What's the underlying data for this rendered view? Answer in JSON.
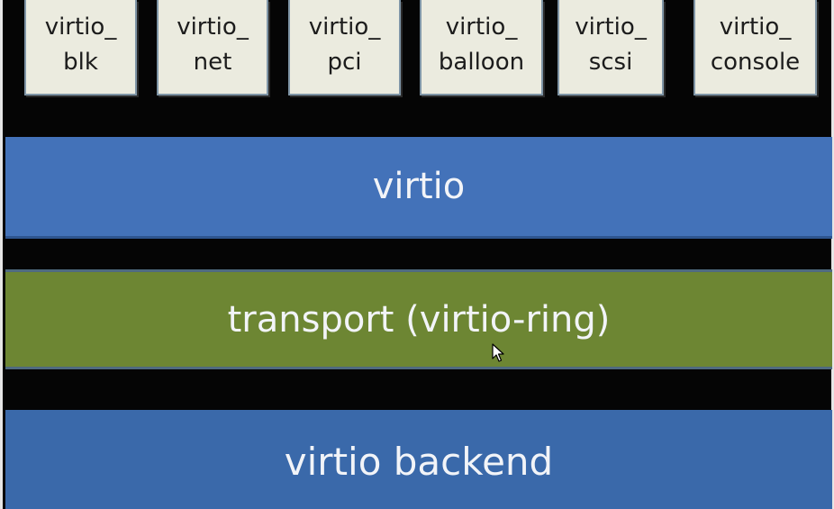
{
  "drivers": [
    {
      "line1": "virtio_",
      "line2": "blk"
    },
    {
      "line1": "virtio_",
      "line2": "net"
    },
    {
      "line1": "virtio_",
      "line2": "pci"
    },
    {
      "line1": "virtio_",
      "line2": "balloon"
    },
    {
      "line1": "virtio_",
      "line2": "scsi"
    },
    {
      "line1": "virtio_",
      "line2": "console"
    }
  ],
  "layers": {
    "virtio": "virtio",
    "transport": "transport (virtio-ring)",
    "backend": "virtio backend"
  },
  "colors": {
    "driver_box": "#ebebdf",
    "virtio_layer": "#4372b9",
    "transport_layer": "#6d8633",
    "backend_layer": "#3a69aa",
    "background": "#050505"
  },
  "icons": {
    "cursor": "mouse-pointer-icon"
  }
}
